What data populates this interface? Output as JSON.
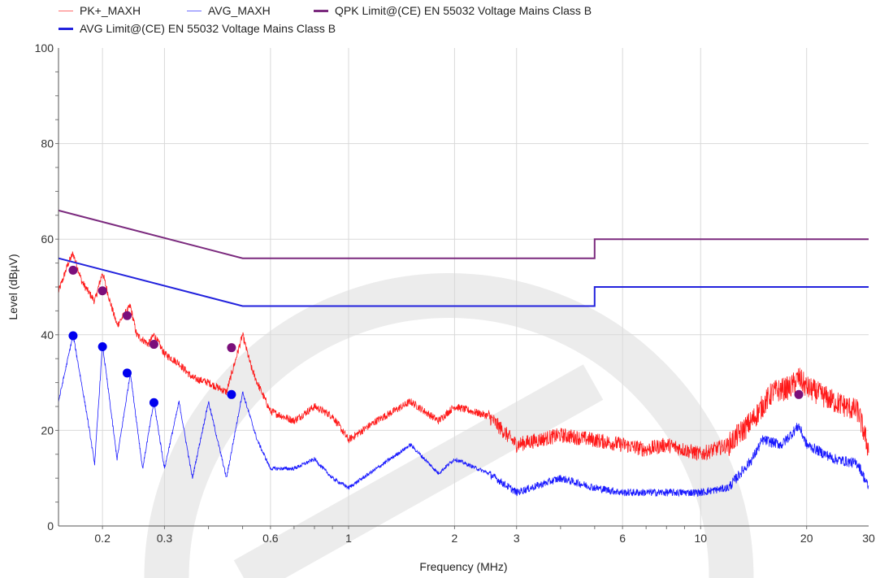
{
  "chart_data": {
    "type": "line",
    "xlabel": "Frequency (MHz)",
    "ylabel": "Level (dBµV)",
    "x_scale": "log",
    "xlim": [
      0.15,
      30
    ],
    "ylim": [
      0,
      100
    ],
    "x_ticks": [
      {
        "value": 0.2,
        "label": "0.2"
      },
      {
        "value": 0.3,
        "label": "0.3"
      },
      {
        "value": 0.6,
        "label": "0.6"
      },
      {
        "value": 1,
        "label": "1"
      },
      {
        "value": 2,
        "label": "2"
      },
      {
        "value": 3,
        "label": "3"
      },
      {
        "value": 6,
        "label": "6"
      },
      {
        "value": 10,
        "label": "10"
      },
      {
        "value": 20,
        "label": "20"
      },
      {
        "value": 30,
        "label": "30"
      }
    ],
    "y_ticks": [
      {
        "value": 0,
        "label": "0"
      },
      {
        "value": 20,
        "label": "20"
      },
      {
        "value": 40,
        "label": "40"
      },
      {
        "value": 60,
        "label": "60"
      },
      {
        "value": 80,
        "label": "80"
      },
      {
        "value": 100,
        "label": "100"
      }
    ],
    "grid": true,
    "legend_position": "top",
    "series": [
      {
        "name": "PK+_MAXH",
        "color": "#ff0000",
        "style": "noisy",
        "points": [
          [
            0.15,
            49
          ],
          [
            0.16,
            55
          ],
          [
            0.165,
            57
          ],
          [
            0.175,
            51
          ],
          [
            0.19,
            47
          ],
          [
            0.2,
            53
          ],
          [
            0.21,
            47
          ],
          [
            0.22,
            42
          ],
          [
            0.24,
            46
          ],
          [
            0.25,
            40
          ],
          [
            0.27,
            38
          ],
          [
            0.28,
            40
          ],
          [
            0.3,
            36
          ],
          [
            0.33,
            34
          ],
          [
            0.36,
            31
          ],
          [
            0.4,
            30
          ],
          [
            0.45,
            28
          ],
          [
            0.5,
            40
          ],
          [
            0.53,
            33
          ],
          [
            0.55,
            30
          ],
          [
            0.6,
            24
          ],
          [
            0.7,
            22
          ],
          [
            0.8,
            25
          ],
          [
            0.9,
            23
          ],
          [
            1.0,
            18
          ],
          [
            1.2,
            22
          ],
          [
            1.5,
            26
          ],
          [
            1.8,
            22
          ],
          [
            2.0,
            25
          ],
          [
            2.5,
            23
          ],
          [
            3.0,
            17
          ],
          [
            4.0,
            19
          ],
          [
            5.0,
            18
          ],
          [
            6.0,
            17
          ],
          [
            7.0,
            16
          ],
          [
            8.0,
            17
          ],
          [
            10,
            15
          ],
          [
            12,
            17
          ],
          [
            14,
            22
          ],
          [
            16,
            28
          ],
          [
            18,
            29
          ],
          [
            19,
            31
          ],
          [
            20,
            29
          ],
          [
            24,
            26
          ],
          [
            28,
            24
          ],
          [
            30,
            16
          ]
        ]
      },
      {
        "name": "AVG_MAXH",
        "color": "#0000ff",
        "style": "resonant",
        "points": [
          [
            0.15,
            26
          ],
          [
            0.165,
            40
          ],
          [
            0.18,
            24
          ],
          [
            0.19,
            13
          ],
          [
            0.2,
            38
          ],
          [
            0.22,
            14
          ],
          [
            0.24,
            32
          ],
          [
            0.26,
            12
          ],
          [
            0.28,
            26
          ],
          [
            0.3,
            12
          ],
          [
            0.33,
            26
          ],
          [
            0.36,
            10
          ],
          [
            0.4,
            26
          ],
          [
            0.45,
            10
          ],
          [
            0.5,
            28
          ],
          [
            0.55,
            18
          ],
          [
            0.6,
            12
          ],
          [
            0.7,
            12
          ],
          [
            0.8,
            14
          ],
          [
            0.9,
            10
          ],
          [
            1.0,
            8
          ],
          [
            1.2,
            12
          ],
          [
            1.5,
            17
          ],
          [
            1.8,
            11
          ],
          [
            2.0,
            14
          ],
          [
            2.5,
            11
          ],
          [
            3.0,
            7
          ],
          [
            4.0,
            10
          ],
          [
            5.0,
            8
          ],
          [
            6.0,
            7
          ],
          [
            8.0,
            7
          ],
          [
            10,
            7
          ],
          [
            12,
            8
          ],
          [
            14,
            14
          ],
          [
            15,
            18
          ],
          [
            17,
            17
          ],
          [
            19,
            21
          ],
          [
            20,
            17
          ],
          [
            24,
            14
          ],
          [
            28,
            13
          ],
          [
            30,
            8
          ]
        ]
      },
      {
        "name": "QPK Limit@(CE) EN 55032 Voltage Mains Class B",
        "color": "#7b2a7e",
        "style": "limit",
        "points": [
          [
            0.15,
            66
          ],
          [
            0.5,
            56
          ],
          [
            5,
            56
          ],
          [
            5,
            60
          ],
          [
            30,
            60
          ]
        ]
      },
      {
        "name": "AVG Limit@(CE) EN 55032 Voltage Mains Class B",
        "color": "#2222dd",
        "style": "limit",
        "points": [
          [
            0.15,
            56
          ],
          [
            0.5,
            46
          ],
          [
            5,
            46
          ],
          [
            5,
            50
          ],
          [
            30,
            50
          ]
        ]
      }
    ],
    "markers": [
      {
        "series": "QPK",
        "color": "#7b0f7b",
        "points": [
          [
            0.165,
            53.5
          ],
          [
            0.2,
            49.2
          ],
          [
            0.235,
            44
          ],
          [
            0.28,
            38
          ],
          [
            0.465,
            37.3
          ],
          [
            19,
            27.5
          ]
        ]
      },
      {
        "series": "AVG",
        "color": "#0000ee",
        "points": [
          [
            0.165,
            39.8
          ],
          [
            0.2,
            37.5
          ],
          [
            0.235,
            32
          ],
          [
            0.28,
            25.8
          ],
          [
            0.465,
            27.5
          ]
        ]
      }
    ]
  }
}
